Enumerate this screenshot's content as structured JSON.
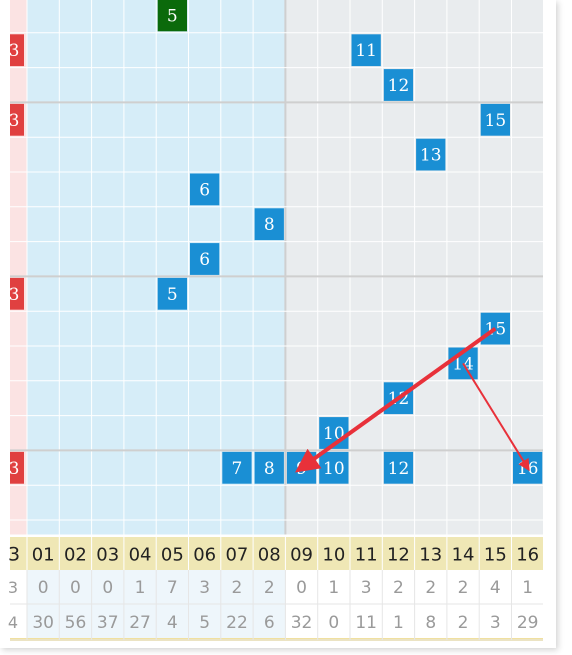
{
  "colors": {
    "left_zone_bg": "#d6edf8",
    "right_zone_bg": "#e9ecee",
    "left_strip_bg": "#fbe3e3",
    "grid_line": "#ffffff",
    "group_line": "#cfcfcf",
    "ball_blue": "#1a8fd4",
    "ball_green": "#0b6a0b",
    "ball_red": "#e04040",
    "arrow_red": "#e8313a",
    "header_bg": "#efe7b5",
    "footer_text": "#9a9a9a"
  },
  "rows": [
    {
      "balls": [
        {
          "col": 5,
          "label": "5",
          "color": "green"
        }
      ],
      "left_mark": ""
    },
    {
      "balls": [
        {
          "col": 11,
          "label": "11",
          "color": "blue"
        }
      ],
      "left_mark": "3"
    },
    {
      "balls": [
        {
          "col": 12,
          "label": "12",
          "color": "blue"
        }
      ],
      "left_mark": ""
    },
    {
      "balls": [
        {
          "col": 15,
          "label": "15",
          "color": "blue"
        }
      ],
      "left_mark": "3"
    },
    {
      "balls": [
        {
          "col": 13,
          "label": "13",
          "color": "blue"
        }
      ],
      "left_mark": ""
    },
    {
      "balls": [
        {
          "col": 6,
          "label": "6",
          "color": "blue"
        }
      ],
      "left_mark": ""
    },
    {
      "balls": [
        {
          "col": 8,
          "label": "8",
          "color": "blue"
        }
      ],
      "left_mark": ""
    },
    {
      "balls": [
        {
          "col": 6,
          "label": "6",
          "color": "blue"
        }
      ],
      "left_mark": ""
    },
    {
      "balls": [
        {
          "col": 5,
          "label": "5",
          "color": "blue"
        }
      ],
      "left_mark": "3"
    },
    {
      "balls": [
        {
          "col": 15,
          "label": "15",
          "color": "blue"
        }
      ],
      "left_mark": ""
    },
    {
      "balls": [
        {
          "col": 14,
          "label": "14",
          "color": "blue"
        }
      ],
      "left_mark": ""
    },
    {
      "balls": [
        {
          "col": 12,
          "label": "12",
          "color": "blue"
        }
      ],
      "left_mark": ""
    },
    {
      "balls": [
        {
          "col": 10,
          "label": "10",
          "color": "blue"
        }
      ],
      "left_mark": ""
    },
    {
      "balls": [
        {
          "col": 7,
          "label": "7",
          "color": "blue"
        },
        {
          "col": 8,
          "label": "8",
          "color": "blue"
        },
        {
          "col": 9,
          "label": "9",
          "color": "blue"
        },
        {
          "col": 10,
          "label": "10",
          "color": "blue"
        },
        {
          "col": 12,
          "label": "12",
          "color": "blue"
        },
        {
          "col": 16,
          "label": "16",
          "color": "blue"
        }
      ],
      "left_mark": "3"
    },
    {
      "balls": [],
      "left_mark": ""
    }
  ],
  "header": {
    "left_label": "3",
    "columns": [
      "01",
      "02",
      "03",
      "04",
      "05",
      "06",
      "07",
      "08",
      "09",
      "10",
      "11",
      "12",
      "13",
      "14",
      "15",
      "16"
    ]
  },
  "stats_row1": {
    "left_label": "3",
    "values": [
      "0",
      "0",
      "0",
      "1",
      "7",
      "3",
      "2",
      "2",
      "0",
      "1",
      "3",
      "2",
      "2",
      "2",
      "4",
      "1"
    ]
  },
  "stats_row2": {
    "left_label": "4",
    "values": [
      "30",
      "56",
      "37",
      "27",
      "4",
      "5",
      "22",
      "6",
      "32",
      "0",
      "11",
      "1",
      "8",
      "2",
      "3",
      "29"
    ]
  },
  "arrows": [
    {
      "from_row": 9,
      "from_col": 15,
      "to_row": 13,
      "to_col": 9
    },
    {
      "from_row": 10,
      "from_col": 14,
      "to_row": 13,
      "to_col": 16
    }
  ]
}
